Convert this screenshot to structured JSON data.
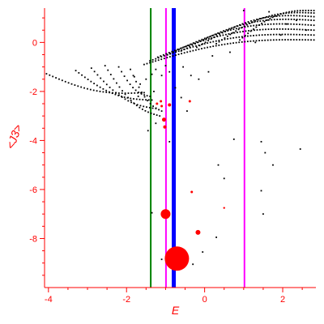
{
  "chart_data": {
    "type": "scatter",
    "xlabel": "E",
    "ylabel": "<J3>",
    "xlim": [
      -4.1,
      2.85
    ],
    "ylim": [
      -10.0,
      1.4
    ],
    "x_ticks": [
      -4,
      -2,
      0,
      2
    ],
    "y_ticks": [
      0,
      -2,
      -4,
      -6,
      -8
    ],
    "colors": {
      "axis": "#ff0000",
      "points": "#000000",
      "highlight": "#ff0000",
      "line_green": "#008000",
      "line_magenta": "#ff00ff",
      "line_blue": "#0000ff"
    },
    "vertical_lines": [
      {
        "x": -1.38,
        "color": "#008000",
        "width": 2
      },
      {
        "x": -0.99,
        "color": "#ff00ff",
        "width": 2
      },
      {
        "x": -0.79,
        "color": "#0000ff",
        "width": 5
      },
      {
        "x": 1.02,
        "color": "#ff00ff",
        "width": 2
      }
    ],
    "highlight_points": [
      {
        "x": -0.71,
        "y": -8.82,
        "r": 15
      },
      {
        "x": -1.0,
        "y": -7.0,
        "r": 6
      },
      {
        "x": -0.17,
        "y": -7.75,
        "r": 3
      },
      {
        "x": -1.04,
        "y": -3.15,
        "r": 2.5
      },
      {
        "x": -1.02,
        "y": -3.45,
        "r": 2
      },
      {
        "x": -0.9,
        "y": -2.55,
        "r": 2
      },
      {
        "x": -1.12,
        "y": -2.4,
        "r": 1.5
      },
      {
        "x": -1.22,
        "y": -2.5,
        "r": 1.5
      },
      {
        "x": -1.1,
        "y": -2.6,
        "r": 1.5
      },
      {
        "x": -0.38,
        "y": -2.4,
        "r": 1.5
      },
      {
        "x": -0.33,
        "y": -6.1,
        "r": 1.5
      },
      {
        "x": 0.5,
        "y": -6.75,
        "r": 1.2
      }
    ],
    "branches": [
      {
        "x0": -4.05,
        "y0": -1.28,
        "x1": -1.55,
        "y1": -2.05,
        "n": 32,
        "curv": -0.3
      },
      {
        "x0": -3.3,
        "y0": -1.15,
        "x1": -1.35,
        "y1": -2.35,
        "n": 26,
        "curv": -0.35
      },
      {
        "x0": -2.9,
        "y0": -1.05,
        "x1": -1.25,
        "y1": -2.7,
        "n": 22,
        "curv": -0.4
      },
      {
        "x0": -2.55,
        "y0": -0.95,
        "x1": -1.15,
        "y1": -3.0,
        "n": 20,
        "curv": -0.45
      },
      {
        "x0": -2.2,
        "y0": -1.0,
        "x1": -1.4,
        "y1": -2.2,
        "n": 12,
        "curv": -0.3
      },
      {
        "x0": -1.9,
        "y0": -1.1,
        "x1": -1.1,
        "y1": -2.8,
        "n": 12,
        "curv": -0.35
      },
      {
        "x0": -1.55,
        "y0": -0.9,
        "x1": 2.8,
        "y1": 0.1,
        "n": 60,
        "curv": 0.35
      },
      {
        "x0": -1.4,
        "y0": -0.75,
        "x1": 2.8,
        "y1": 0.3,
        "n": 58,
        "curv": 0.4
      },
      {
        "x0": -1.2,
        "y0": -0.6,
        "x1": 2.8,
        "y1": 0.5,
        "n": 56,
        "curv": 0.45
      },
      {
        "x0": -0.95,
        "y0": -0.5,
        "x1": 2.8,
        "y1": 0.7,
        "n": 52,
        "curv": 0.5
      },
      {
        "x0": -0.6,
        "y0": -0.35,
        "x1": 2.8,
        "y1": 0.9,
        "n": 48,
        "curv": 0.5
      },
      {
        "x0": -0.2,
        "y0": -0.2,
        "x1": 2.8,
        "y1": 1.05,
        "n": 42,
        "curv": 0.5
      },
      {
        "x0": 0.3,
        "y0": -0.05,
        "x1": 2.8,
        "y1": 1.2,
        "n": 36,
        "curv": 0.45
      },
      {
        "x0": 0.9,
        "y0": 0.1,
        "x1": 2.8,
        "y1": 1.3,
        "n": 28,
        "curv": 0.4
      }
    ],
    "scatter_points": [
      [
        -1.5,
        -1.5
      ],
      [
        -1.8,
        -1.4
      ],
      [
        -1.65,
        -1.7
      ],
      [
        -1.35,
        -1.3
      ],
      [
        -1.25,
        -1.1
      ],
      [
        -1.1,
        -1.35
      ],
      [
        -0.9,
        -1.2
      ],
      [
        -1.0,
        -0.95
      ],
      [
        -0.55,
        -1.0
      ],
      [
        -0.35,
        -1.35
      ],
      [
        -1.45,
        -3.6
      ],
      [
        -1.25,
        -3.3
      ],
      [
        -0.9,
        -4.05
      ],
      [
        -1.35,
        -6.95
      ],
      [
        -0.85,
        -8.85
      ],
      [
        -1.1,
        -8.85
      ],
      [
        -0.5,
        -8.5
      ],
      [
        -0.3,
        -9.05
      ],
      [
        -0.05,
        -8.55
      ],
      [
        0.3,
        -7.95
      ],
      [
        1.5,
        -7.0
      ],
      [
        1.45,
        -6.05
      ],
      [
        1.75,
        -5.0
      ],
      [
        2.45,
        -4.35
      ],
      [
        0.35,
        -5.0
      ],
      [
        0.5,
        -5.55
      ],
      [
        1.45,
        -4.05
      ],
      [
        0.75,
        -3.95
      ],
      [
        1.55,
        -4.5
      ],
      [
        -0.75,
        -1.85
      ],
      [
        -0.6,
        -2.25
      ],
      [
        -1.3,
        -2.0
      ],
      [
        -1.7,
        -2.2
      ],
      [
        0.2,
        -0.55
      ],
      [
        0.65,
        -0.4
      ],
      [
        1.3,
        0.0
      ],
      [
        1.95,
        0.3
      ],
      [
        2.1,
        0.75
      ],
      [
        1.0,
        1.3
      ],
      [
        1.65,
        1.25
      ],
      [
        2.35,
        0.9
      ],
      [
        2.6,
        0.5
      ],
      [
        0.1,
        -1.2
      ],
      [
        -0.15,
        -1.5
      ],
      [
        -0.45,
        -2.8
      ]
    ]
  }
}
